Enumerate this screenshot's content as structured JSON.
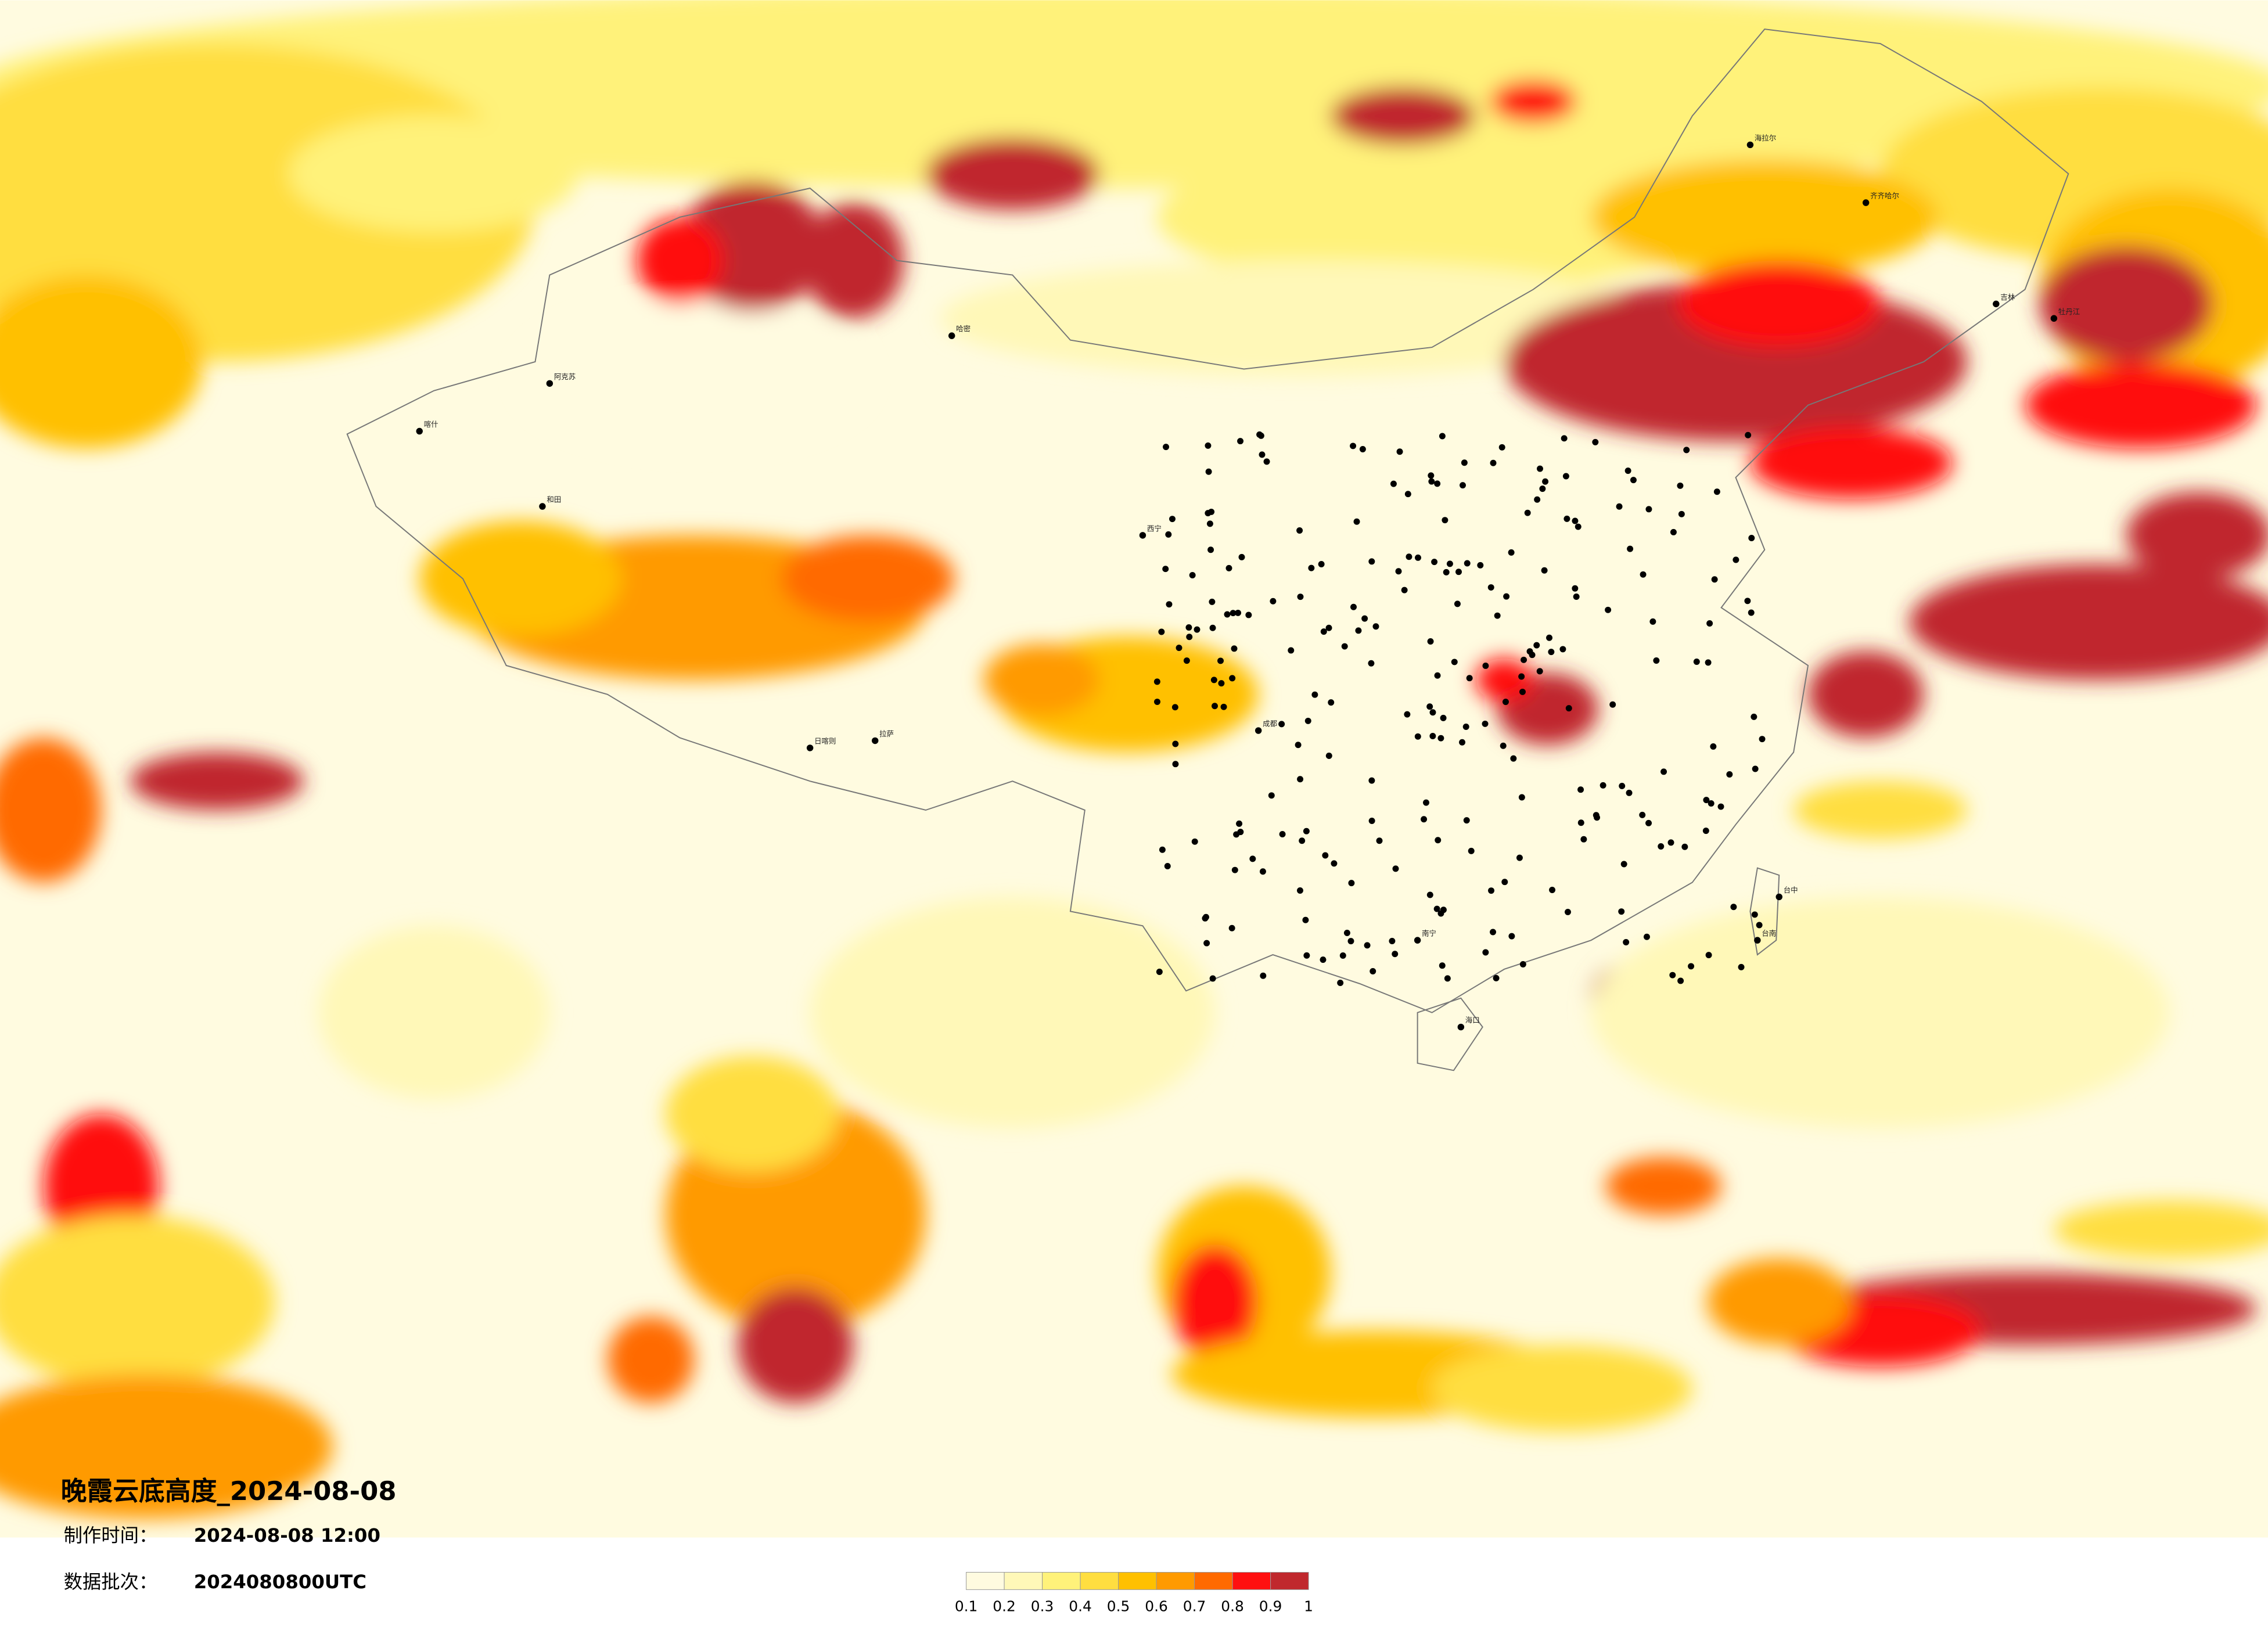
{
  "header": {
    "title": "晚霞云底高度_2024-08-08",
    "production_time_label": "制作时间：",
    "production_time": "2024-08-08 12:00",
    "batch_label": "数据批次：",
    "batch": "2024080800UTC"
  },
  "legend": {
    "ticks": [
      0.1,
      0.2,
      0.3,
      0.4,
      0.5,
      0.6,
      0.7,
      0.8,
      0.9,
      1
    ],
    "colors": [
      "#fffbe0",
      "#fff8b8",
      "#fff27a",
      "#ffde40",
      "#ffc000",
      "#ff9a00",
      "#ff6a00",
      "#ff1010",
      "#c0282d"
    ]
  },
  "cities": [
    "阿克苏",
    "和田",
    "喀什",
    "哈密",
    "日喀则",
    "拉萨",
    "海拉尔",
    "齐齐哈尔",
    "吉林",
    "牡丹江",
    "台中",
    "台南",
    "南宁",
    "海口",
    "西宁",
    "成都"
  ]
}
